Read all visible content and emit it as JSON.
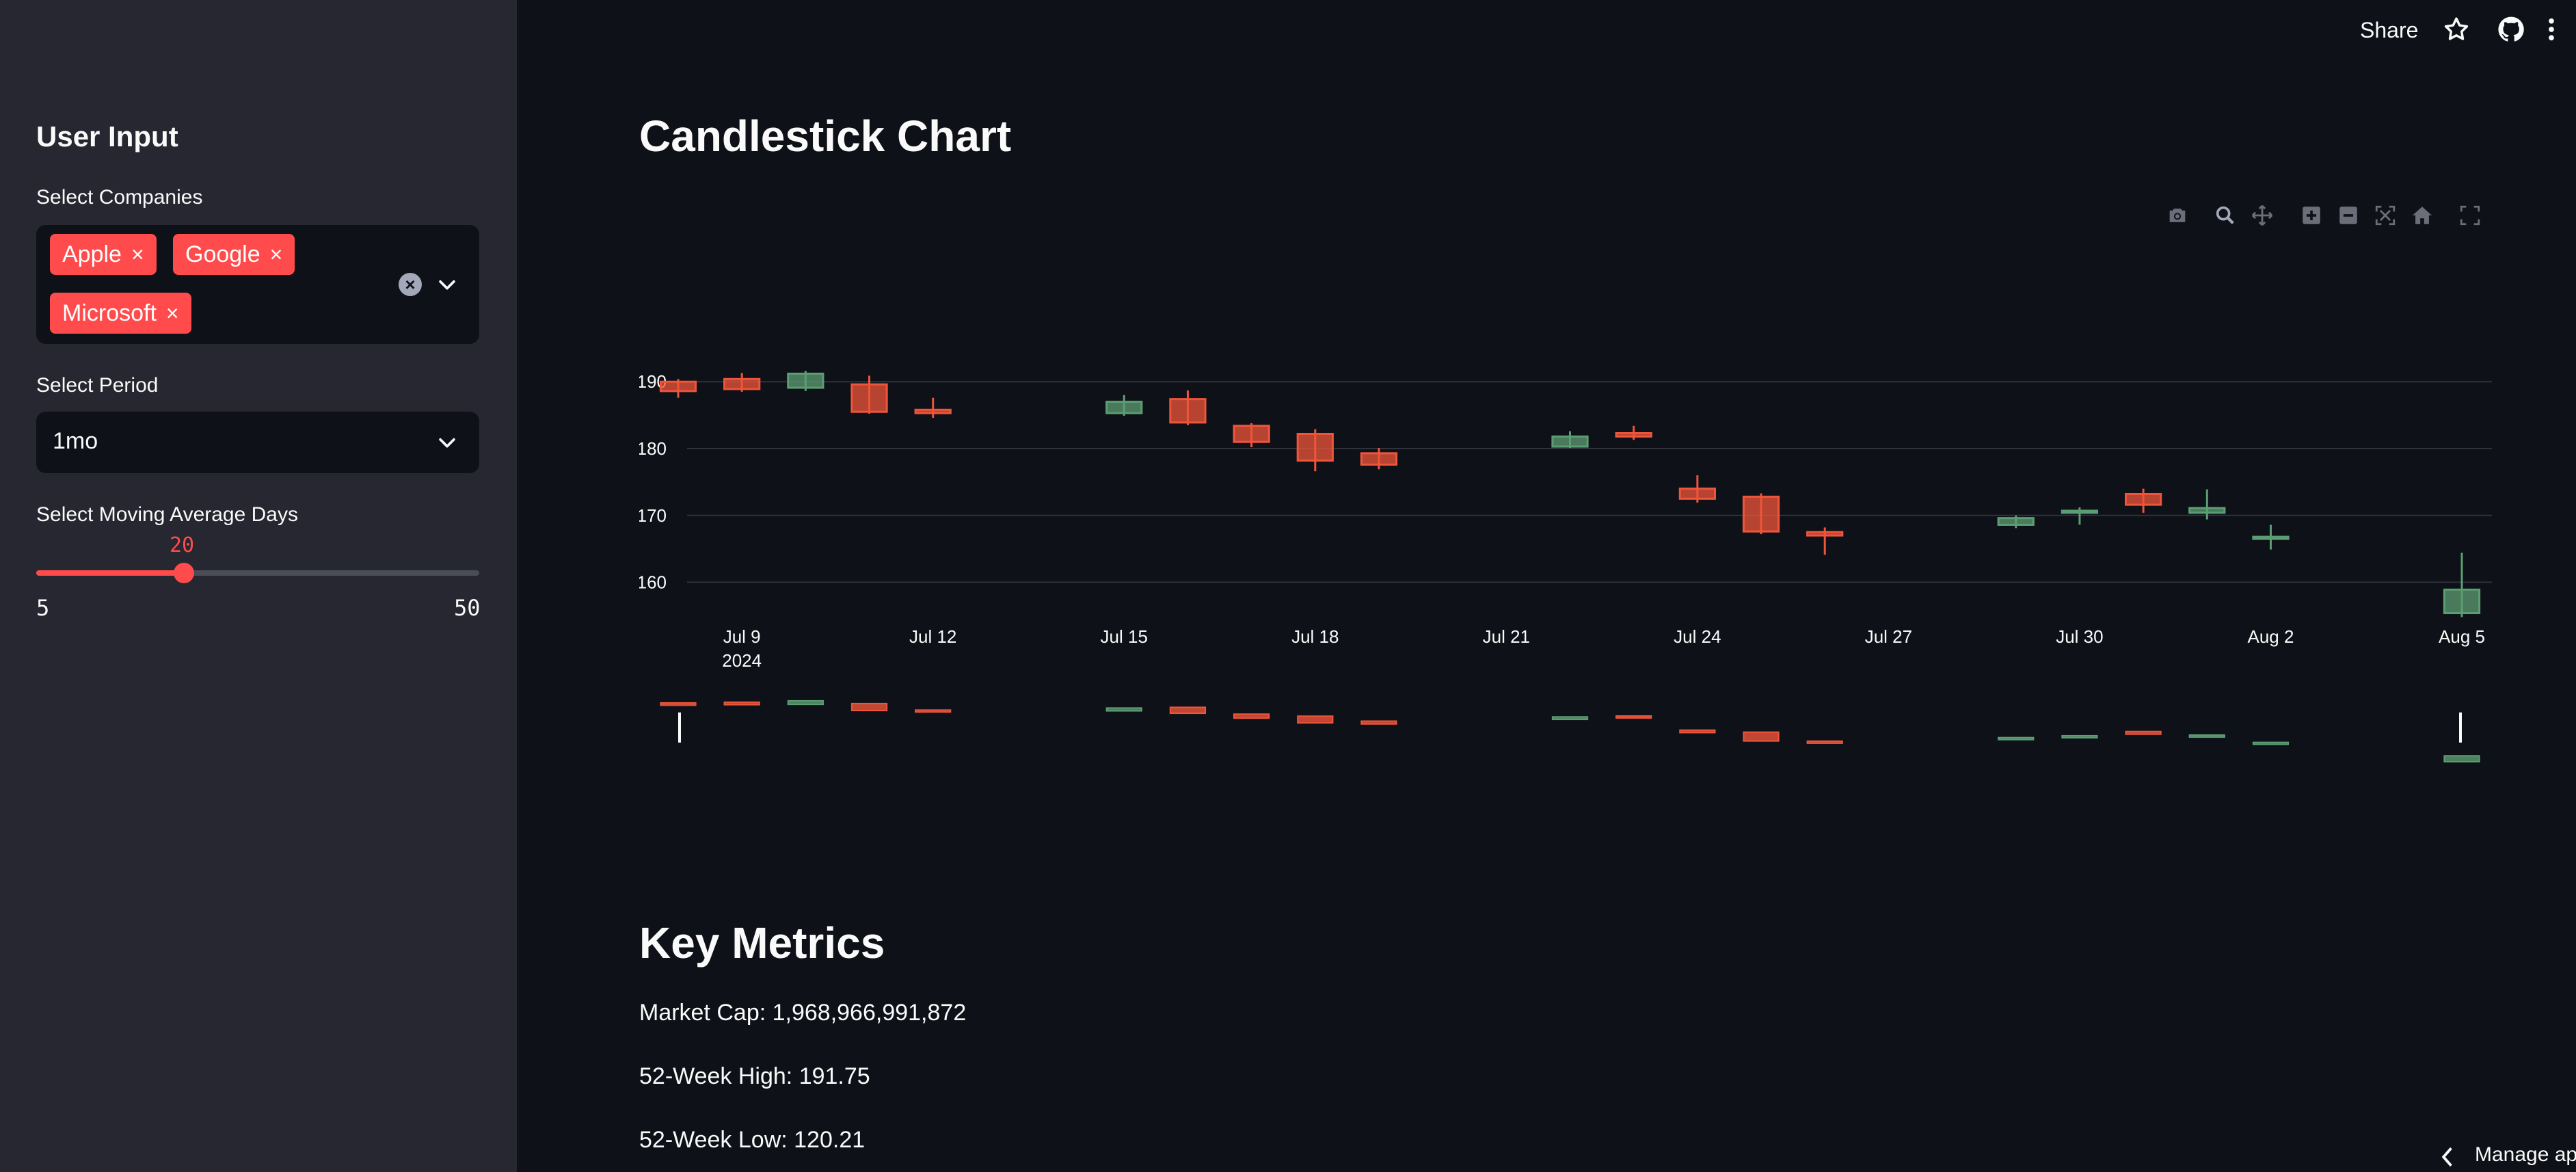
{
  "sidebar": {
    "title": "User Input",
    "companies_label": "Select Companies",
    "companies": [
      "Apple",
      "Google",
      "Microsoft"
    ],
    "remove_glyph": "×",
    "clear_glyph": "×",
    "period_label": "Select Period",
    "period_value": "1mo",
    "ma_label": "Select Moving Average Days",
    "ma_value": "20",
    "ma_min": "5",
    "ma_max": "50",
    "ma_fraction": 0.333
  },
  "header": {
    "share_label": "Share",
    "icons": [
      "star-icon",
      "github-icon",
      "kebab-menu-icon"
    ]
  },
  "main": {
    "chart_heading": "Candlestick Chart",
    "modebar_icons": [
      "camera-icon",
      "zoom-icon",
      "pan-icon",
      "zoom-in-icon",
      "zoom-out-icon",
      "autoscale-icon",
      "reset-axes-icon",
      "fullscreen-icon"
    ],
    "metrics_heading": "Key Metrics",
    "market_cap": "Market Cap: 1,968,966,991,872",
    "high_52w": "52-Week High: 191.75",
    "low_52w": "52-Week Low: 120.21"
  },
  "footer": {
    "manage_label": "Manage ap"
  },
  "colors": {
    "accent": "#ff4b4b",
    "up": "#5c9e73",
    "down": "#ef553b",
    "bg": "#0e1117",
    "sidebar_bg": "#262730"
  },
  "chart_data": {
    "type": "candlestick",
    "title": "",
    "xlabel": "",
    "ylabel": "",
    "ylim": [
      153,
      198
    ],
    "y_ticks": [
      "190",
      "180",
      "170",
      "160"
    ],
    "x_ticks": [
      {
        "date": "2024-07-09",
        "label": "Jul 9",
        "sublabel": "2024"
      },
      {
        "date": "2024-07-12",
        "label": "Jul 12"
      },
      {
        "date": "2024-07-15",
        "label": "Jul 15"
      },
      {
        "date": "2024-07-18",
        "label": "Jul 18"
      },
      {
        "date": "2024-07-21",
        "label": "Jul 21"
      },
      {
        "date": "2024-07-24",
        "label": "Jul 24"
      },
      {
        "date": "2024-07-27",
        "label": "Jul 27"
      },
      {
        "date": "2024-07-30",
        "label": "Jul 30"
      },
      {
        "date": "2024-08-02",
        "label": "Aug 2"
      },
      {
        "date": "2024-08-05",
        "label": "Aug 5"
      }
    ],
    "x_range": [
      "2024-07-08",
      "2024-08-05"
    ],
    "grid": true,
    "rangeslider": true,
    "candles": [
      {
        "date": "2024-07-08",
        "open": 190.0,
        "high": 190.4,
        "low": 187.6,
        "close": 188.6
      },
      {
        "date": "2024-07-09",
        "open": 190.4,
        "high": 191.3,
        "low": 188.5,
        "close": 188.9
      },
      {
        "date": "2024-07-10",
        "open": 189.1,
        "high": 191.6,
        "low": 188.6,
        "close": 191.2
      },
      {
        "date": "2024-07-11",
        "open": 189.6,
        "high": 190.9,
        "low": 185.2,
        "close": 185.5
      },
      {
        "date": "2024-07-12",
        "open": 185.8,
        "high": 187.6,
        "low": 184.6,
        "close": 185.3
      },
      {
        "date": "2024-07-15",
        "open": 185.3,
        "high": 188.0,
        "low": 184.9,
        "close": 187.0
      },
      {
        "date": "2024-07-16",
        "open": 187.4,
        "high": 188.7,
        "low": 183.5,
        "close": 183.9
      },
      {
        "date": "2024-07-17",
        "open": 183.4,
        "high": 183.8,
        "low": 180.2,
        "close": 181.0
      },
      {
        "date": "2024-07-18",
        "open": 182.2,
        "high": 182.9,
        "low": 176.6,
        "close": 178.2
      },
      {
        "date": "2024-07-19",
        "open": 179.3,
        "high": 180.1,
        "low": 176.9,
        "close": 177.6
      },
      {
        "date": "2024-07-22",
        "open": 180.3,
        "high": 182.6,
        "low": 180.1,
        "close": 181.8
      },
      {
        "date": "2024-07-23",
        "open": 182.3,
        "high": 183.4,
        "low": 181.3,
        "close": 181.8
      },
      {
        "date": "2024-07-24",
        "open": 174.0,
        "high": 176.0,
        "low": 171.9,
        "close": 172.5
      },
      {
        "date": "2024-07-25",
        "open": 172.8,
        "high": 173.3,
        "low": 167.2,
        "close": 167.6
      },
      {
        "date": "2024-07-26",
        "open": 167.5,
        "high": 168.2,
        "low": 164.1,
        "close": 167.0
      },
      {
        "date": "2024-07-29",
        "open": 168.6,
        "high": 170.0,
        "low": 168.1,
        "close": 169.6
      },
      {
        "date": "2024-07-30",
        "open": 170.5,
        "high": 171.2,
        "low": 168.6,
        "close": 170.7
      },
      {
        "date": "2024-07-31",
        "open": 173.2,
        "high": 174.0,
        "low": 170.4,
        "close": 171.6
      },
      {
        "date": "2024-08-01",
        "open": 170.4,
        "high": 173.9,
        "low": 169.4,
        "close": 171.1
      },
      {
        "date": "2024-08-02",
        "open": 166.8,
        "high": 168.6,
        "low": 164.9,
        "close": 166.8
      },
      {
        "date": "2024-08-05",
        "open": 155.4,
        "high": 164.4,
        "low": 154.8,
        "close": 158.9
      }
    ]
  }
}
